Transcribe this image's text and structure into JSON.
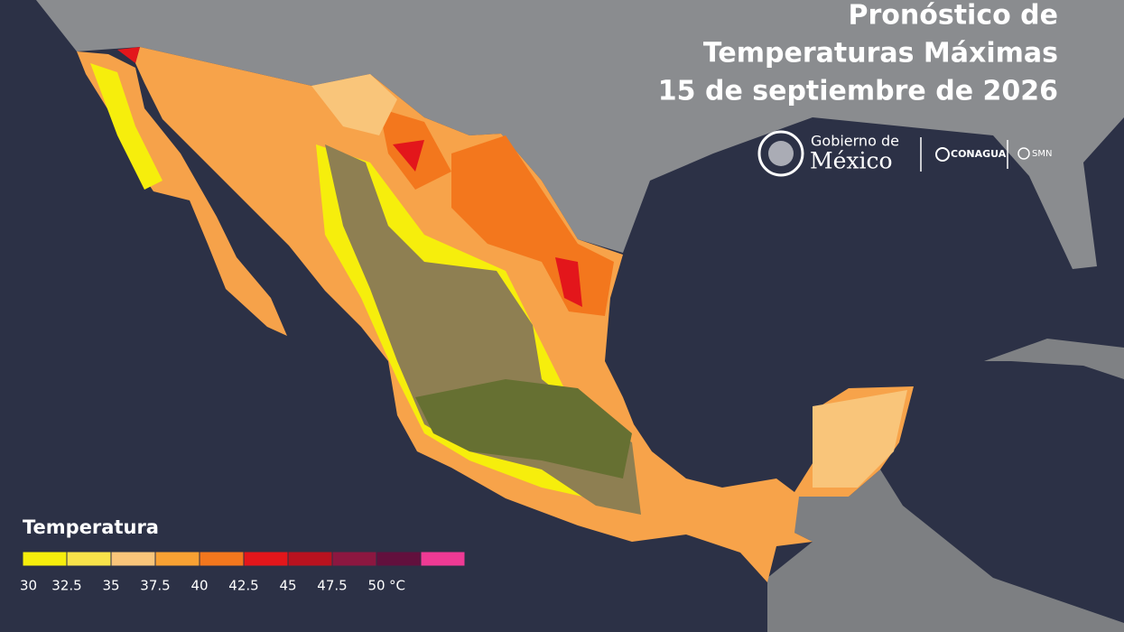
{
  "header": {
    "title_lines": [
      "Pronóstico de",
      "Temperaturas Máximas",
      "15 de septiembre de 2026"
    ]
  },
  "logos": {
    "gobierno": "Gobierno de",
    "mexico": "México",
    "conagua": "CONAGUA",
    "smn": "SMN"
  },
  "legend": {
    "title": "Temperatura",
    "ticks": [
      30,
      32.5,
      35,
      37.5,
      40,
      42.5,
      45,
      47.5,
      50
    ],
    "unit": "°C",
    "colors": [
      "#f6ee0c",
      "#f8e34a",
      "#f9c57a",
      "#f8a133",
      "#f3771d",
      "#e3161b",
      "#b9121f",
      "#8c1740",
      "#62103d",
      "#ee3a94"
    ]
  }
}
